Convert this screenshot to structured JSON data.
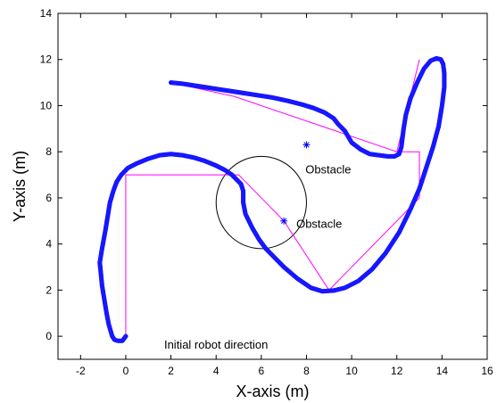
{
  "chart_data": {
    "type": "line",
    "title": "",
    "xlabel": "X-axis (m)",
    "ylabel": "Y-axis (m)",
    "xlim": [
      -3,
      16
    ],
    "ylim": [
      -1,
      14
    ],
    "xticks": [
      -2,
      0,
      2,
      4,
      6,
      8,
      10,
      12,
      14,
      16
    ],
    "yticks": [
      0,
      2,
      4,
      6,
      8,
      10,
      12,
      14
    ],
    "grid": false,
    "colors": {
      "trajectory": "#0000ff",
      "waypoints": "#ff00ff",
      "obstacle": "#000000",
      "marker": "#0000ff"
    },
    "series": [
      {
        "style": "thick-dotted-line",
        "x": [
          0,
          -0.15,
          -0.35,
          -0.5,
          -0.6,
          -0.75,
          -0.85,
          -0.95,
          -1.05,
          -1.1,
          -1.15,
          -1.05,
          -0.9,
          -0.8,
          -0.7,
          -0.55,
          -0.4,
          -0.2,
          0.1,
          0.5,
          1.0,
          1.5,
          2.0,
          2.5,
          3.0,
          3.5,
          4.0,
          4.4,
          4.7,
          4.9,
          5.1,
          5.2,
          5.2,
          5.3,
          5.6,
          5.9,
          6.2,
          6.6,
          7.0,
          7.6,
          8.2,
          8.7,
          9.2,
          9.7,
          10.3,
          10.9,
          11.5,
          12.1,
          12.6,
          13.0,
          13.3,
          13.6,
          13.85,
          14.0,
          14.1,
          14.1,
          14.05,
          13.95,
          13.75,
          13.5,
          13.2,
          12.9,
          12.6,
          12.4,
          12.3,
          12.25,
          12.2,
          12.1,
          11.9,
          11.6,
          11.2,
          10.8,
          10.4,
          10.0,
          9.7,
          9.4,
          9.2,
          8.8,
          8.3,
          7.8,
          7.2,
          6.5,
          5.5,
          4.5,
          3.5,
          2.5,
          2.0
        ],
        "y": [
          0,
          -0.2,
          -0.2,
          -0.15,
          0.0,
          0.5,
          1.0,
          1.6,
          2.2,
          2.7,
          3.2,
          3.8,
          4.6,
          5.2,
          5.8,
          6.3,
          6.7,
          7.0,
          7.3,
          7.5,
          7.7,
          7.85,
          7.9,
          7.85,
          7.75,
          7.6,
          7.4,
          7.2,
          7.0,
          6.8,
          6.6,
          6.3,
          5.8,
          5.3,
          4.7,
          4.2,
          3.8,
          3.4,
          3.0,
          2.5,
          2.1,
          1.95,
          1.98,
          2.1,
          2.4,
          2.9,
          3.6,
          4.5,
          5.5,
          6.4,
          7.3,
          8.2,
          9.1,
          10.0,
          10.8,
          11.4,
          11.8,
          12.0,
          12.05,
          11.95,
          11.6,
          11.0,
          10.3,
          9.6,
          9.0,
          8.6,
          8.2,
          7.9,
          7.8,
          7.8,
          7.85,
          7.9,
          8.1,
          8.4,
          8.9,
          9.2,
          9.45,
          9.7,
          9.9,
          10.05,
          10.2,
          10.35,
          10.5,
          10.65,
          10.8,
          10.95,
          11.0
        ]
      },
      {
        "style": "thin-solid-line",
        "x": [
          0,
          0,
          5,
          7,
          9,
          13,
          13,
          12,
          13,
          13,
          12,
          4.8,
          2
        ],
        "y": [
          0,
          7,
          7,
          5,
          2,
          6,
          8,
          8,
          12,
          12,
          8,
          10.4,
          11
        ]
      }
    ],
    "obstacle_circle": {
      "cx": 6,
      "cy": 5.8,
      "r": 2
    },
    "markers": [
      {
        "x": 8,
        "y": 8.3
      },
      {
        "x": 7,
        "y": 5
      }
    ],
    "annotations": [
      {
        "text": "Obstacle",
        "x": 7.95,
        "y": 7.25
      },
      {
        "text": "Obstacle",
        "x": 7.55,
        "y": 4.9
      },
      {
        "text": "Initial robot direction",
        "x": 1.7,
        "y": -0.35
      }
    ]
  }
}
